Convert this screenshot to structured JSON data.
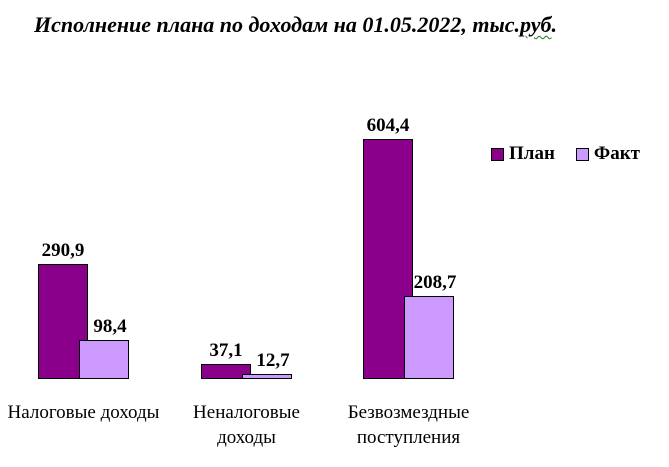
{
  "title": {
    "text_before": "Исполнение плана по доходам на 01.05.2022, тыс.",
    "text_spellcheck": "руб",
    "text_after": "."
  },
  "chart_data": {
    "type": "bar",
    "title": "Исполнение плана по доходам на 01.05.2022, тыс.руб.",
    "categories": [
      "Налоговые доходы",
      "Неналоговые доходы",
      "Безвозмездные поступления"
    ],
    "category_label_lines": [
      [
        "Налоговые доходы"
      ],
      [
        "Неналоговые",
        "доходы"
      ],
      [
        "Безвозмездные",
        "поступления"
      ]
    ],
    "series": [
      {
        "name": "План",
        "color": "#8B008B",
        "values": [
          290.9,
          37.1,
          604.4
        ],
        "value_labels": [
          "290,9",
          "37,1",
          "604,4"
        ]
      },
      {
        "name": "Факт",
        "color": "#CC99FF",
        "values": [
          98.4,
          12.7,
          208.7
        ],
        "value_labels": [
          "98,4",
          "12,7",
          "208,7"
        ]
      }
    ],
    "ylim": [
      0,
      650
    ],
    "decimal_separator": ",",
    "legend_position": "right",
    "gridlines": false,
    "axes_visible": false,
    "bar_border_color": "#000000",
    "background_color": "#FFFFFF"
  }
}
